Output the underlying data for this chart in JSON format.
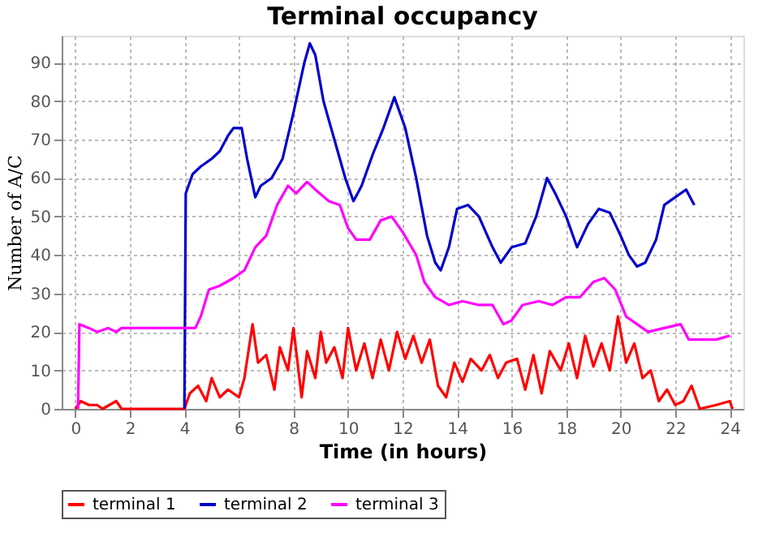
{
  "chart_data": {
    "type": "line",
    "title": "Terminal occupancy",
    "xlabel": "Time (in hours)",
    "ylabel": "Number of A/C",
    "xlim": [
      -0.5,
      24.5
    ],
    "xticks": [
      0,
      2,
      4,
      6,
      8,
      10,
      12,
      14,
      16,
      18,
      20,
      22,
      24
    ],
    "ylim": [
      0,
      97
    ],
    "yticks": [
      0,
      10,
      20,
      30,
      40,
      50,
      60,
      70,
      80,
      90
    ],
    "grid": true,
    "legend": "bottom",
    "series": [
      {
        "name": "terminal 1",
        "color": "#ff0000",
        "x": [
          0,
          0.2,
          0.5,
          0.8,
          1,
          1.5,
          1.7,
          4,
          4.2,
          4.5,
          4.8,
          5,
          5.3,
          5.6,
          6,
          6.2,
          6.5,
          6.7,
          7,
          7.3,
          7.5,
          7.8,
          8,
          8.3,
          8.5,
          8.8,
          9,
          9.2,
          9.5,
          9.8,
          10,
          10.3,
          10.6,
          10.9,
          11.2,
          11.5,
          11.8,
          12.1,
          12.4,
          12.7,
          13,
          13.3,
          13.6,
          13.9,
          14.2,
          14.5,
          14.9,
          15.2,
          15.5,
          15.8,
          16.2,
          16.5,
          16.8,
          17.1,
          17.4,
          17.8,
          18.1,
          18.4,
          18.7,
          19,
          19.3,
          19.6,
          19.9,
          20.2,
          20.5,
          20.8,
          21.1,
          21.4,
          21.7,
          22,
          22.3,
          22.6,
          22.9,
          23.5,
          24,
          24.1
        ],
        "values": [
          0,
          2,
          1,
          1,
          0,
          2,
          0,
          0,
          4,
          6,
          2,
          8,
          3,
          5,
          3,
          8,
          22,
          12,
          14,
          5,
          16,
          10,
          21,
          3,
          15,
          8,
          20,
          12,
          16,
          8,
          21,
          10,
          17,
          8,
          18,
          10,
          20,
          13,
          19,
          12,
          18,
          6,
          3,
          12,
          7,
          13,
          10,
          14,
          8,
          12,
          13,
          5,
          14,
          4,
          15,
          10,
          17,
          8,
          19,
          11,
          17,
          10,
          24,
          12,
          17,
          8,
          10,
          2,
          5,
          1,
          2,
          6,
          0,
          1,
          2,
          0
        ]
      },
      {
        "name": "terminal 2",
        "color": "#0000cc",
        "x": [
          4,
          4.05,
          4.3,
          4.6,
          5,
          5.3,
          5.6,
          5.8,
          6.1,
          6.3,
          6.6,
          6.8,
          7.2,
          7.6,
          8,
          8.4,
          8.6,
          8.8,
          9.1,
          9.5,
          9.9,
          10.2,
          10.5,
          10.9,
          11.3,
          11.7,
          12.1,
          12.5,
          12.9,
          13.2,
          13.4,
          13.7,
          14,
          14.4,
          14.8,
          15.3,
          15.6,
          16,
          16.5,
          16.9,
          17.3,
          17.6,
          18,
          18.4,
          18.8,
          19.2,
          19.6,
          20,
          20.3,
          20.6,
          20.9,
          21.3,
          21.6,
          22,
          22.4,
          22.7
        ],
        "values": [
          0,
          56,
          61,
          63,
          65,
          67,
          71,
          73,
          73,
          65,
          55,
          58,
          60,
          65,
          77,
          90,
          95,
          92,
          80,
          70,
          60,
          54,
          58,
          66,
          73,
          81,
          73,
          60,
          45,
          38,
          36,
          42,
          52,
          53,
          50,
          42,
          38,
          42,
          43,
          50,
          60,
          56,
          50,
          42,
          48,
          52,
          51,
          45,
          40,
          37,
          38,
          44,
          53,
          55,
          57,
          53
        ]
      },
      {
        "name": "terminal 3",
        "color": "#ff00ff",
        "x": [
          0.1,
          0.15,
          0.5,
          0.8,
          1.2,
          1.5,
          1.7,
          4.4,
          4.6,
          4.9,
          5.3,
          5.8,
          6.2,
          6.6,
          7,
          7.4,
          7.8,
          8.1,
          8.5,
          8.8,
          9.3,
          9.7,
          10,
          10.3,
          10.8,
          11.2,
          11.6,
          12,
          12.5,
          12.8,
          13.2,
          13.7,
          14.2,
          14.8,
          15.3,
          15.7,
          16,
          16.4,
          17,
          17.5,
          18,
          18.5,
          19,
          19.4,
          19.8,
          20.2,
          20.6,
          21,
          21.6,
          22.2,
          22.5,
          23.5,
          24
        ],
        "values": [
          0,
          22,
          21,
          20,
          21,
          20,
          21,
          21,
          24,
          31,
          32,
          34,
          36,
          42,
          45,
          53,
          58,
          56,
          59,
          57,
          54,
          53,
          47,
          44,
          44,
          49,
          50,
          46,
          40,
          33,
          29,
          27,
          28,
          27,
          27,
          22,
          23,
          27,
          28,
          27,
          29,
          29,
          33,
          34,
          31,
          24,
          22,
          20,
          21,
          22,
          18,
          18,
          19
        ]
      }
    ]
  }
}
